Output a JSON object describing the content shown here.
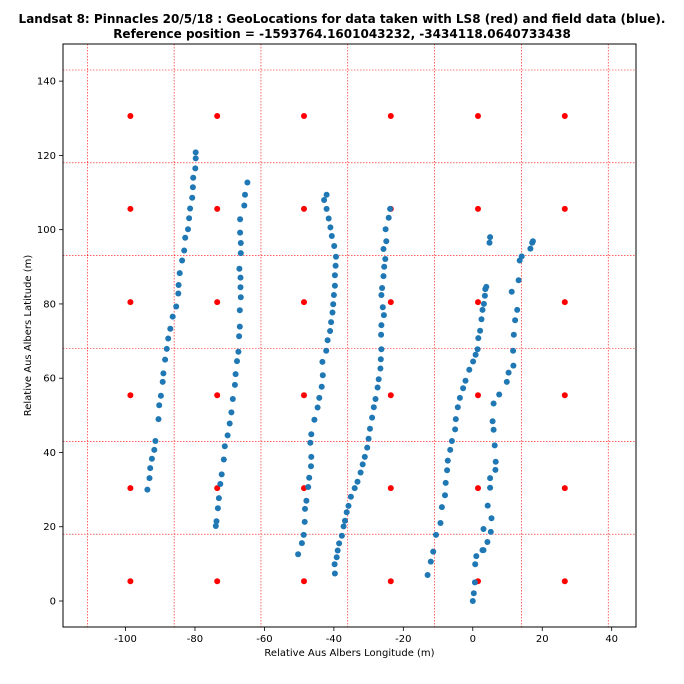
{
  "chart_data": {
    "type": "scatter",
    "title": "Landsat 8: Pinnacles 20/5/18 : GeoLocations for data taken with LS8 (red) and field data (blue).",
    "subtitle": "Reference position = -1593764.1601043232, -3434118.0640733438",
    "xlabel": "Relative Aus Albers Longitude (m)",
    "ylabel": "Relative Aus Albers Latitude (m)",
    "xlim": [
      -118,
      47
    ],
    "ylim": [
      -7,
      150
    ],
    "xticks": [
      -100,
      -80,
      -60,
      -40,
      -20,
      0,
      20,
      40
    ],
    "yticks": [
      0,
      20,
      40,
      60,
      80,
      100,
      120,
      140
    ],
    "grid": {
      "x": [
        -111,
        -86,
        -61,
        -36,
        -11,
        14,
        39
      ],
      "y": [
        -7,
        18,
        43,
        68,
        93,
        118,
        143
      ],
      "color": "#ff0000",
      "style": "dotted"
    },
    "series": [
      {
        "color": "#ff0000",
        "points": [
          [
            -98.6,
            5.3
          ],
          [
            -73.6,
            5.3
          ],
          [
            -48.6,
            5.3
          ],
          [
            -23.6,
            5.3
          ],
          [
            1.5,
            5.3
          ],
          [
            26.5,
            5.3
          ],
          [
            -98.6,
            30.4
          ],
          [
            -73.6,
            30.4
          ],
          [
            -48.6,
            30.4
          ],
          [
            -23.6,
            30.4
          ],
          [
            1.5,
            30.4
          ],
          [
            26.5,
            30.4
          ],
          [
            -98.6,
            55.4
          ],
          [
            -73.6,
            55.4
          ],
          [
            -48.6,
            55.4
          ],
          [
            -23.6,
            55.4
          ],
          [
            1.5,
            55.4
          ],
          [
            26.5,
            55.4
          ],
          [
            -98.6,
            80.5
          ],
          [
            -73.6,
            80.5
          ],
          [
            -48.6,
            80.5
          ],
          [
            -23.6,
            80.5
          ],
          [
            1.5,
            80.5
          ],
          [
            26.5,
            80.5
          ],
          [
            -98.6,
            105.6
          ],
          [
            -73.6,
            105.6
          ],
          [
            -48.6,
            105.6
          ],
          [
            -23.6,
            105.6
          ],
          [
            1.5,
            105.6
          ],
          [
            26.5,
            105.6
          ],
          [
            -98.6,
            130.6
          ],
          [
            -73.6,
            130.6
          ],
          [
            -48.6,
            130.6
          ],
          [
            -23.6,
            130.6
          ],
          [
            1.5,
            130.6
          ],
          [
            26.5,
            130.6
          ]
        ]
      },
      {
        "color": "#1f77b4",
        "points": [
          [
            -93.7,
            30.0
          ],
          [
            -93.1,
            33.1
          ],
          [
            -92.9,
            35.8
          ],
          [
            -92.4,
            38.3
          ],
          [
            -91.7,
            40.7
          ],
          [
            -91.4,
            43.1
          ],
          [
            -90.5,
            49.0
          ],
          [
            -90.3,
            52.7
          ],
          [
            -89.8,
            55.3
          ],
          [
            -89.3,
            59.0
          ],
          [
            -89.1,
            61.3
          ],
          [
            -88.6,
            65.0
          ],
          [
            -88.1,
            67.9
          ],
          [
            -87.7,
            70.7
          ],
          [
            -87.1,
            73.3
          ],
          [
            -86.4,
            76.6
          ],
          [
            -85.4,
            79.3
          ],
          [
            -84.8,
            82.8
          ],
          [
            -84.7,
            85.1
          ],
          [
            -84.4,
            88.3
          ],
          [
            -83.7,
            91.7
          ],
          [
            -83.1,
            94.4
          ],
          [
            -82.8,
            97.8
          ],
          [
            -82.0,
            100.1
          ],
          [
            -81.7,
            103.1
          ],
          [
            -81.4,
            105.7
          ],
          [
            -80.8,
            108.6
          ],
          [
            -80.6,
            111.4
          ],
          [
            -80.5,
            114.0
          ],
          [
            -79.9,
            116.5
          ],
          [
            -79.8,
            119.2
          ],
          [
            -79.8,
            120.8
          ],
          [
            -74.0,
            20.2
          ],
          [
            -73.8,
            21.5
          ],
          [
            -73.4,
            25.0
          ],
          [
            -73.1,
            27.7
          ],
          [
            -72.7,
            31.5
          ],
          [
            -72.3,
            34.1
          ],
          [
            -71.7,
            38.1
          ],
          [
            -71.4,
            41.7
          ],
          [
            -70.6,
            44.6
          ],
          [
            -70.0,
            47.8
          ],
          [
            -69.5,
            50.8
          ],
          [
            -69.1,
            54.4
          ],
          [
            -68.5,
            58.2
          ],
          [
            -68.3,
            61.1
          ],
          [
            -67.9,
            64.6
          ],
          [
            -67.5,
            67.1
          ],
          [
            -67.3,
            71.3
          ],
          [
            -67.1,
            73.9
          ],
          [
            -67.1,
            78.3
          ],
          [
            -66.8,
            81.8
          ],
          [
            -66.9,
            84.5
          ],
          [
            -66.9,
            87.1
          ],
          [
            -67.2,
            89.5
          ],
          [
            -66.8,
            93.7
          ],
          [
            -66.8,
            96.4
          ],
          [
            -67.0,
            99.2
          ],
          [
            -67.0,
            102.8
          ],
          [
            -65.8,
            106.5
          ],
          [
            -65.6,
            109.4
          ],
          [
            -64.9,
            112.7
          ],
          [
            -50.3,
            12.6
          ],
          [
            -49.2,
            15.6
          ],
          [
            -48.7,
            17.8
          ],
          [
            -48.4,
            21.3
          ],
          [
            -48.3,
            24.8
          ],
          [
            -47.9,
            27.0
          ],
          [
            -47.4,
            30.7
          ],
          [
            -47.1,
            33.2
          ],
          [
            -46.6,
            36.3
          ],
          [
            -46.5,
            38.8
          ],
          [
            -46.8,
            42.6
          ],
          [
            -46.5,
            44.9
          ],
          [
            -45.6,
            48.8
          ],
          [
            -44.7,
            52.1
          ],
          [
            -44.2,
            54.7
          ],
          [
            -43.5,
            57.7
          ],
          [
            -43.2,
            60.8
          ],
          [
            -43.3,
            64.4
          ],
          [
            -42.2,
            67.4
          ],
          [
            -41.8,
            70.2
          ],
          [
            -41.1,
            72.7
          ],
          [
            -40.8,
            75.1
          ],
          [
            -40.4,
            77.7
          ],
          [
            -40.2,
            79.9
          ],
          [
            -40.0,
            82.4
          ],
          [
            -39.7,
            84.9
          ],
          [
            -39.7,
            87.7
          ],
          [
            -39.5,
            90.3
          ],
          [
            -39.4,
            92.7
          ],
          [
            -39.9,
            95.6
          ],
          [
            -40.6,
            98.3
          ],
          [
            -41.0,
            100.6
          ],
          [
            -41.5,
            103.0
          ],
          [
            -42.1,
            105.6
          ],
          [
            -42.8,
            108.0
          ],
          [
            -42.1,
            109.4
          ],
          [
            -39.7,
            7.4
          ],
          [
            -39.8,
            9.9
          ],
          [
            -39.2,
            11.8
          ],
          [
            -38.9,
            13.6
          ],
          [
            -38.5,
            15.5
          ],
          [
            -37.7,
            17.6
          ],
          [
            -37.2,
            20.1
          ],
          [
            -36.8,
            21.6
          ],
          [
            -36.3,
            23.9
          ],
          [
            -35.8,
            25.6
          ],
          [
            -35.1,
            28.1
          ],
          [
            -34.0,
            30.4
          ],
          [
            -33.2,
            32.1
          ],
          [
            -32.3,
            34.6
          ],
          [
            -31.7,
            36.8
          ],
          [
            -31.1,
            38.8
          ],
          [
            -30.4,
            41.3
          ],
          [
            -30.0,
            43.7
          ],
          [
            -29.6,
            46.4
          ],
          [
            -29.0,
            49.4
          ],
          [
            -28.5,
            52.2
          ],
          [
            -28.0,
            54.4
          ],
          [
            -27.4,
            57.5
          ],
          [
            -27.1,
            59.7
          ],
          [
            -26.6,
            62.6
          ],
          [
            -26.5,
            65.1
          ],
          [
            -26.3,
            67.8
          ],
          [
            -26.4,
            71.7
          ],
          [
            -26.3,
            74.3
          ],
          [
            -25.6,
            77.0
          ],
          [
            -25.9,
            79.1
          ],
          [
            -26.3,
            82.4
          ],
          [
            -26.1,
            84.3
          ],
          [
            -25.7,
            87.5
          ],
          [
            -25.5,
            90.0
          ],
          [
            -25.2,
            92.1
          ],
          [
            -25.7,
            94.8
          ],
          [
            -24.9,
            96.9
          ],
          [
            -25.1,
            100.1
          ],
          [
            -24.2,
            103.2
          ],
          [
            -23.8,
            105.6
          ],
          [
            -13.0,
            7.0
          ],
          [
            -12.1,
            10.6
          ],
          [
            -11.4,
            13.3
          ],
          [
            -10.6,
            17.8
          ],
          [
            -9.3,
            21.0
          ],
          [
            -8.9,
            25.3
          ],
          [
            -8.0,
            28.5
          ],
          [
            -7.8,
            31.8
          ],
          [
            -7.4,
            35.2
          ],
          [
            -7.2,
            37.8
          ],
          [
            -6.5,
            40.7
          ],
          [
            -6.0,
            43.1
          ],
          [
            -5.1,
            46.2
          ],
          [
            -4.9,
            49.0
          ],
          [
            -4.3,
            52.2
          ],
          [
            -3.7,
            54.7
          ],
          [
            -2.8,
            57.3
          ],
          [
            -2.1,
            59.3
          ],
          [
            -1.0,
            62.3
          ],
          [
            0.1,
            64.5
          ],
          [
            0.8,
            66.3
          ],
          [
            1.4,
            67.8
          ],
          [
            1.6,
            70.8
          ],
          [
            2.1,
            72.8
          ],
          [
            2.5,
            75.9
          ],
          [
            2.8,
            78.4
          ],
          [
            3.2,
            80.0
          ],
          [
            3.5,
            82.2
          ],
          [
            3.6,
            84.0
          ],
          [
            3.9,
            84.6
          ],
          [
            4.8,
            96.5
          ],
          [
            5.0,
            98.0
          ],
          [
            0.0,
            0.0
          ],
          [
            0.3,
            2.1
          ],
          [
            0.6,
            5.0
          ],
          [
            0.7,
            9.9
          ],
          [
            1.0,
            12.1
          ],
          [
            2.8,
            13.7
          ],
          [
            3.1,
            13.7
          ],
          [
            3.1,
            19.4
          ],
          [
            4.2,
            15.9
          ],
          [
            4.3,
            25.7
          ],
          [
            5.2,
            18.6
          ],
          [
            5.4,
            22.3
          ],
          [
            5.0,
            30.5
          ],
          [
            5.0,
            33.1
          ],
          [
            6.5,
            35.3
          ],
          [
            6.6,
            37.5
          ],
          [
            6.3,
            41.9
          ],
          [
            6.0,
            46.1
          ],
          [
            5.7,
            48.4
          ],
          [
            6.0,
            53.2
          ],
          [
            7.6,
            55.6
          ],
          [
            9.8,
            59.0
          ],
          [
            10.3,
            61.5
          ],
          [
            11.7,
            63.4
          ],
          [
            11.6,
            67.4
          ],
          [
            11.8,
            71.7
          ],
          [
            12.2,
            75.6
          ],
          [
            12.8,
            78.4
          ],
          [
            11.2,
            83.3
          ],
          [
            13.2,
            86.4
          ],
          [
            13.5,
            91.7
          ],
          [
            14.1,
            92.8
          ],
          [
            16.6,
            94.9
          ],
          [
            17.1,
            96.5
          ],
          [
            17.3,
            96.9
          ]
        ]
      }
    ]
  }
}
